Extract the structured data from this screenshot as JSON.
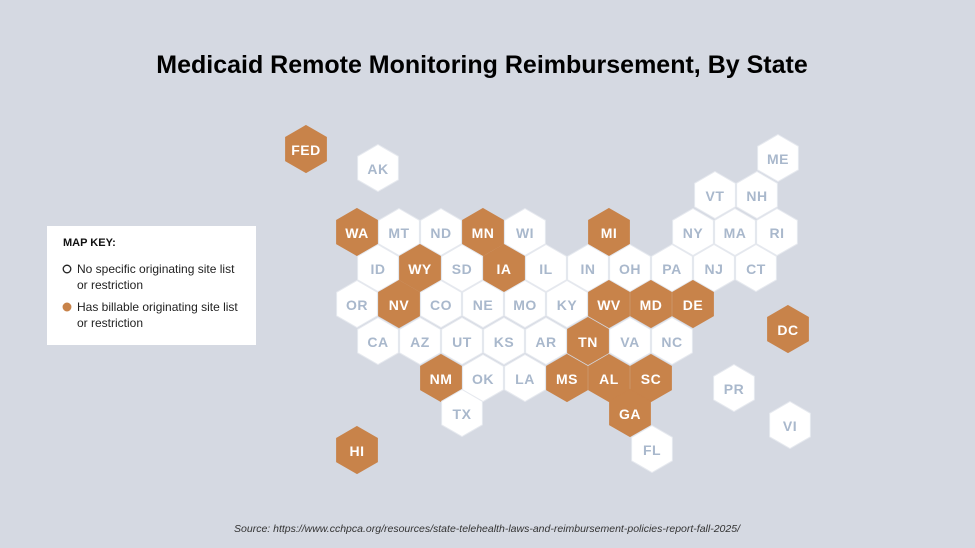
{
  "title": "Medicaid Remote Monitoring Reimbursement, By State",
  "legend": {
    "heading": "MAP KEY:",
    "items": [
      {
        "lines": [
          "No specific originating site list",
          "or restriction"
        ],
        "fill": "#ffffff",
        "text_color": "#a9b8cc"
      },
      {
        "lines": [
          "Has billable originating site list",
          "or restriction"
        ],
        "fill": "#c8834a",
        "text_color": "#ffffff"
      }
    ]
  },
  "tiles": [
    {
      "label": "FED",
      "key": 1
    },
    {
      "label": "AK",
      "key": 0
    },
    {
      "label": "ME",
      "key": 0
    },
    {
      "label": "VT",
      "key": 0
    },
    {
      "label": "NH",
      "key": 0
    },
    {
      "label": "WA",
      "key": 1
    },
    {
      "label": "MT",
      "key": 0
    },
    {
      "label": "ND",
      "key": 0
    },
    {
      "label": "MN",
      "key": 1
    },
    {
      "label": "WI",
      "key": 0
    },
    {
      "label": "MI",
      "key": 1
    },
    {
      "label": "NY",
      "key": 0
    },
    {
      "label": "MA",
      "key": 0
    },
    {
      "label": "RI",
      "key": 0
    },
    {
      "label": "ID",
      "key": 0
    },
    {
      "label": "WY",
      "key": 1
    },
    {
      "label": "SD",
      "key": 0
    },
    {
      "label": "IA",
      "key": 1
    },
    {
      "label": "IL",
      "key": 0
    },
    {
      "label": "IN",
      "key": 0
    },
    {
      "label": "OH",
      "key": 0
    },
    {
      "label": "PA",
      "key": 0
    },
    {
      "label": "NJ",
      "key": 0
    },
    {
      "label": "CT",
      "key": 0
    },
    {
      "label": "OR",
      "key": 0
    },
    {
      "label": "NV",
      "key": 1
    },
    {
      "label": "CO",
      "key": 0
    },
    {
      "label": "NE",
      "key": 0
    },
    {
      "label": "MO",
      "key": 0
    },
    {
      "label": "KY",
      "key": 0
    },
    {
      "label": "WV",
      "key": 1
    },
    {
      "label": "MD",
      "key": 1
    },
    {
      "label": "DE",
      "key": 1
    },
    {
      "label": "DC",
      "key": 1
    },
    {
      "label": "CA",
      "key": 0
    },
    {
      "label": "AZ",
      "key": 0
    },
    {
      "label": "UT",
      "key": 0
    },
    {
      "label": "KS",
      "key": 0
    },
    {
      "label": "AR",
      "key": 0
    },
    {
      "label": "TN",
      "key": 1
    },
    {
      "label": "VA",
      "key": 0
    },
    {
      "label": "NC",
      "key": 0
    },
    {
      "label": "NM",
      "key": 1
    },
    {
      "label": "OK",
      "key": 0
    },
    {
      "label": "LA",
      "key": 0
    },
    {
      "label": "MS",
      "key": 1
    },
    {
      "label": "AL",
      "key": 1
    },
    {
      "label": "SC",
      "key": 1
    },
    {
      "label": "PR",
      "key": 0
    },
    {
      "label": "GA",
      "key": 1
    },
    {
      "label": "TX",
      "key": 0
    },
    {
      "label": "VI",
      "key": 0
    },
    {
      "label": "HI",
      "key": 1
    },
    {
      "label": "FL",
      "key": 0
    }
  ],
  "source": "Source: https://www.cchpca.org/resources/state-telehealth-laws-and-reimbursement-policies-report-fall-2025/"
}
